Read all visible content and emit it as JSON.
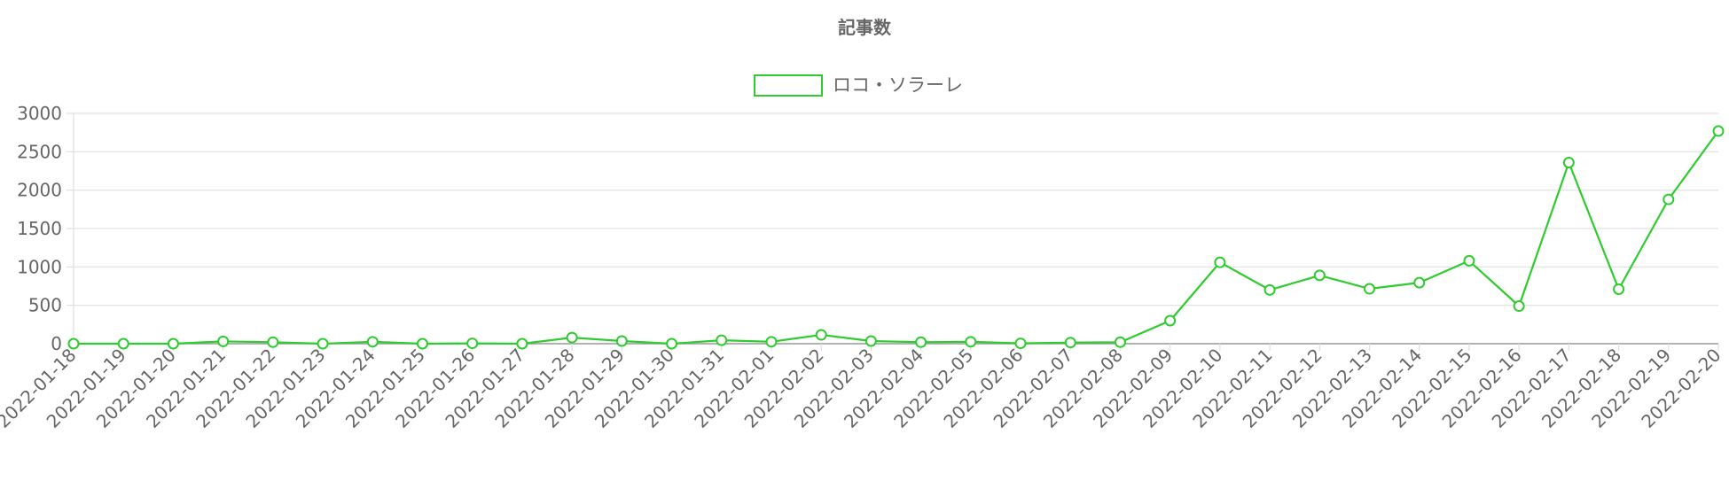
{
  "chart_data": {
    "type": "line",
    "title": "記事数",
    "xlabel": "",
    "ylabel": "",
    "ylim": [
      0,
      3000
    ],
    "yticks": [
      0,
      500,
      1000,
      1500,
      2000,
      2500,
      3000
    ],
    "grid": true,
    "legend_position": "top",
    "colors": {
      "series": "#2ecc2e",
      "grid": "#e0e0e0",
      "axis": "#999999"
    },
    "categories": [
      "2022-01-18",
      "2022-01-19",
      "2022-01-20",
      "2022-01-21",
      "2022-01-22",
      "2022-01-23",
      "2022-01-24",
      "2022-01-25",
      "2022-01-26",
      "2022-01-27",
      "2022-01-28",
      "2022-01-29",
      "2022-01-30",
      "2022-01-31",
      "2022-02-01",
      "2022-02-02",
      "2022-02-03",
      "2022-02-04",
      "2022-02-05",
      "2022-02-06",
      "2022-02-07",
      "2022-02-08",
      "2022-02-09",
      "2022-02-10",
      "2022-02-11",
      "2022-02-12",
      "2022-02-13",
      "2022-02-14",
      "2022-02-15",
      "2022-02-16",
      "2022-02-17",
      "2022-02-18",
      "2022-02-19",
      "2022-02-20"
    ],
    "series": [
      {
        "name": "ロコ・ソラーレ",
        "values": [
          0,
          0,
          0,
          30,
          20,
          0,
          25,
          0,
          5,
          0,
          80,
          35,
          0,
          45,
          25,
          115,
          35,
          20,
          25,
          5,
          15,
          20,
          300,
          1060,
          700,
          890,
          715,
          795,
          1080,
          490,
          2360,
          710,
          1880,
          2770
        ]
      }
    ]
  }
}
